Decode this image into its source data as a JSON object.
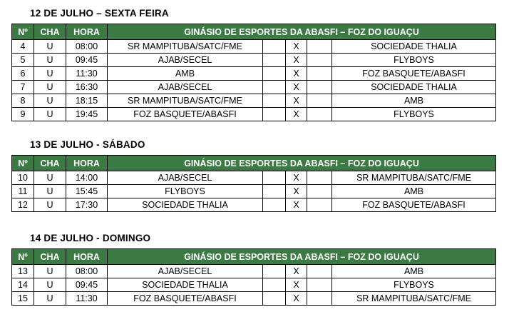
{
  "table": {
    "columns": {
      "num": "Nº",
      "cha": "CHA",
      "hora": "HORA"
    },
    "venue_header": "GINÁSIO DE ESPORTES DA ABASFI – FOZ DO IGUAÇU",
    "versus": "X"
  },
  "colors": {
    "header_bg": "#3C7A44",
    "header_text": "#FFFFFF",
    "border": "#000000",
    "text": "#000000"
  },
  "sections": [
    {
      "title": "12 DE JULHO – SEXTA FEIRA",
      "rows": [
        {
          "num": "4",
          "cha": "U",
          "hora": "08:00",
          "home": "SR MAMPITUBA/SATC/FME",
          "away": "SOCIEDADE THALIA"
        },
        {
          "num": "5",
          "cha": "U",
          "hora": "09:45",
          "home": "AJAB/SECEL",
          "away": "FLYBOYS"
        },
        {
          "num": "6",
          "cha": "U",
          "hora": "11:30",
          "home": "AMB",
          "away": "FOZ BASQUETE/ABASFI"
        },
        {
          "num": "7",
          "cha": "U",
          "hora": "16:30",
          "home": "AJAB/SECEL",
          "away": "SOCIEDADE THALIA"
        },
        {
          "num": "8",
          "cha": "U",
          "hora": "18:15",
          "home": "SR MAMPITUBA/SATC/FME",
          "away": "AMB"
        },
        {
          "num": "9",
          "cha": "U",
          "hora": "19:45",
          "home": "FOZ BASQUETE/ABASFI",
          "away": "FLYBOYS"
        }
      ]
    },
    {
      "title": "13 DE JULHO - SÁBADO",
      "rows": [
        {
          "num": "10",
          "cha": "U",
          "hora": "14:00",
          "home": "AJAB/SECEL",
          "away": "SR MAMPITUBA/SATC/FME"
        },
        {
          "num": "11",
          "cha": "U",
          "hora": "15:45",
          "home": "FLYBOYS",
          "away": "AMB"
        },
        {
          "num": "12",
          "cha": "U",
          "hora": "17:30",
          "home": "SOCIEDADE THALIA",
          "away": "FOZ BASQUETE/ABASFI"
        }
      ]
    },
    {
      "title": "14 DE JULHO - DOMINGO",
      "rows": [
        {
          "num": "13",
          "cha": "U",
          "hora": "08:00",
          "home": "AJAB/SECEL",
          "away": "AMB"
        },
        {
          "num": "14",
          "cha": "U",
          "hora": "09:45",
          "home": "SOCIEDADE THALIA",
          "away": "FLYBOYS"
        },
        {
          "num": "15",
          "cha": "U",
          "hora": "11:30",
          "home": "FOZ BASQUETE/ABASFI",
          "away": "SR MAMPITUBA/SATC/FME"
        }
      ]
    }
  ]
}
